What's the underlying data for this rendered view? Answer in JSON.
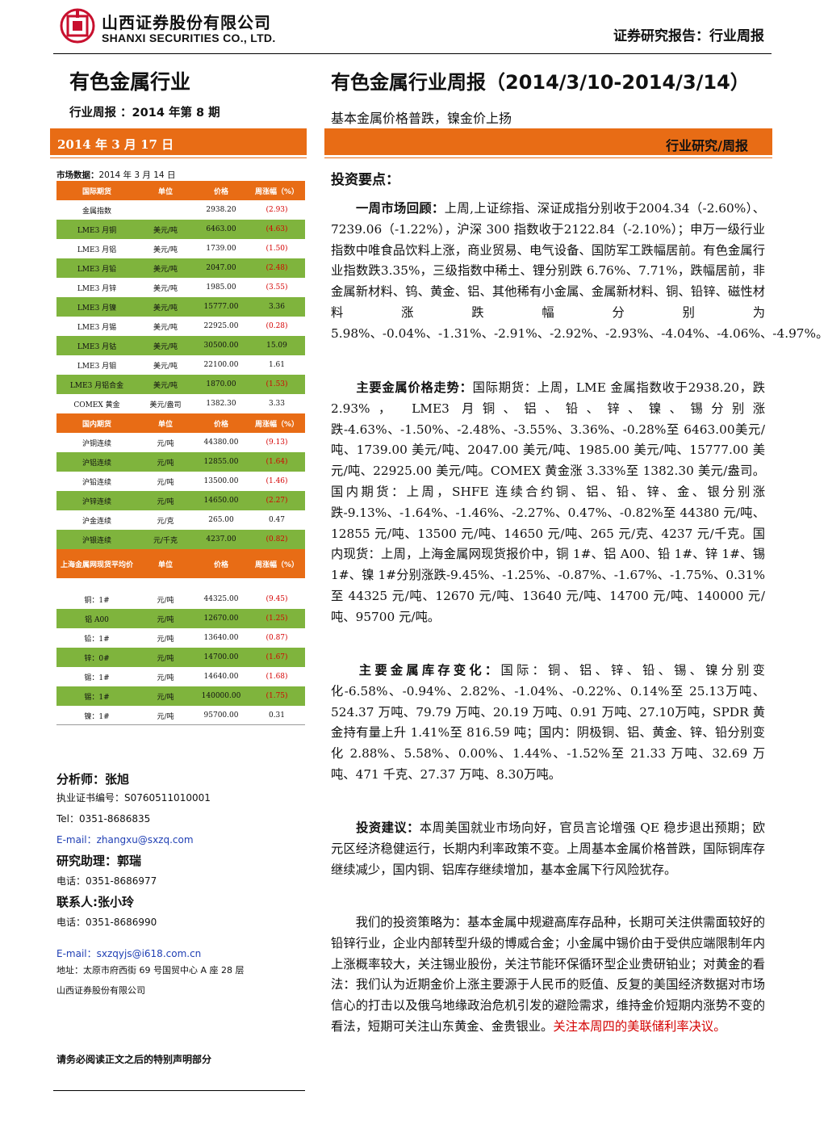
{
  "header": {
    "company_cn": "山西证券股份有限公司",
    "company_en": "SHANXI SECURITIES CO., LTD.",
    "report_type": "证券研究报告：行业周报",
    "brand_color": "#C8102E"
  },
  "left": {
    "industry": "有色金属行业",
    "issue": "行业周报  ：2014 年第 8 期",
    "date": "2014 年 3 月 17 日",
    "market_caption_label": "市场数据：",
    "market_caption_date": "2014 年 3 月 14 日",
    "tables": {
      "intl": {
        "headers": [
          "国际期货",
          "单位",
          "价格",
          "周涨幅（%）"
        ],
        "rows": [
          [
            "金属指数",
            "",
            "2938.20",
            "(2.93)"
          ],
          [
            "LME3 月铜",
            "美元/吨",
            "6463.00",
            "(4.63)"
          ],
          [
            "LME3 月铝",
            "美元/吨",
            "1739.00",
            "(1.50)"
          ],
          [
            "LME3 月铅",
            "美元/吨",
            "2047.00",
            "(2.48)"
          ],
          [
            "LME3 月锌",
            "美元/吨",
            "1985.00",
            "(3.55)"
          ],
          [
            "LME3 月镍",
            "美元/吨",
            "15777.00",
            "3.36"
          ],
          [
            "LME3 月锡",
            "美元/吨",
            "22925.00",
            "(0.28)"
          ],
          [
            "LME3 月钴",
            "美元/吨",
            "30500.00",
            "15.09"
          ],
          [
            "LME3 月钼",
            "美元/吨",
            "22100.00",
            "1.61"
          ],
          [
            "LME3 月铝合金",
            "美元/吨",
            "1870.00",
            "(1.53)"
          ],
          [
            "COMEX 黄金",
            "美元/盎司",
            "1382.30",
            "3.33"
          ]
        ]
      },
      "domestic": {
        "headers": [
          "国内期货",
          "单位",
          "价格",
          "周涨幅（%）"
        ],
        "rows": [
          [
            "沪铜连续",
            "元/吨",
            "44380.00",
            "(9.13)"
          ],
          [
            "沪铝连续",
            "元/吨",
            "12855.00",
            "(1.64)"
          ],
          [
            "沪铅连续",
            "元/吨",
            "13500.00",
            "(1.46)"
          ],
          [
            "沪锌连续",
            "元/吨",
            "14650.00",
            "(2.27)"
          ],
          [
            "沪金连续",
            "元/克",
            "265.00",
            "0.47"
          ],
          [
            "沪银连续",
            "元/千克",
            "4237.00",
            "(0.82)"
          ]
        ]
      },
      "spot": {
        "headers": [
          "上海金属网现货平均价",
          "单位",
          "价格",
          "周涨幅（%）"
        ],
        "rows": [
          [
            "铜：1#",
            "元/吨",
            "44325.00",
            "(9.45)"
          ],
          [
            "铝 A00",
            "元/吨",
            "12670.00",
            "(1.25)"
          ],
          [
            "铅：1#",
            "元/吨",
            "13640.00",
            "(0.87)"
          ],
          [
            "锌：0#",
            "元/吨",
            "14700.00",
            "(1.67)"
          ],
          [
            "锡：1#",
            "元/吨",
            "14640.00",
            "(1.68)"
          ],
          [
            "锡：1#",
            "元/吨",
            "140000.00",
            "(1.75)"
          ],
          [
            "镍：1#",
            "元/吨",
            "95700.00",
            "0.31"
          ]
        ]
      }
    },
    "analyst": "分析师：张旭",
    "cert": "执业证书编号：S0760511010001",
    "tel1": "Tel：0351-8686835",
    "email1": "E-mail：zhangxu@sxzq.com",
    "assistant": "研究助理：郭瑞",
    "tel2": "电话：0351-8686977",
    "contact": "联系人:张小玲",
    "tel3": "电话：0351-8686990",
    "email2": "E-mail：sxzqyjs@i618.com.cn",
    "address": "地址：太原市府西街 69 号国贸中心 A 座 28 层",
    "company_foot": "山西证券股份有限公司",
    "disclaimer": "请务必阅读正文之后的特别声明部分"
  },
  "right": {
    "title": "有色金属行业周报（2014/3/10-2014/3/14）",
    "subtitle": "基本金属价格普跌，镍金价上扬",
    "category": "行业研究/周报",
    "points_heading": "投资要点：",
    "p1_label": "一周市场回顾：",
    "p1_text": "上周,上证综指、深证成指分别收于2004.34（-2.60%）、7239.06（-1.22%），沪深 300 指数收于2122.84（-2.10%）；申万一级行业指数中唯食品饮料上涨，商业贸易、电气设备、国防军工跌幅居前。有色金属行业指数跌3.35%，三级指数中稀土、锂分别跌 6.76%、7.71%，跌幅居前，非金属新材料、钨、黄金、铝、其他稀有小金属、金属新材料、铜、铅锌、磁性材料涨跌幅分别为 5.98%、-0.04%、-1.31%、-2.91%、-2.92%、-2.93%、-4.04%、-4.06%、-4.97%。",
    "p2_label": "主要金属价格走势：",
    "p2_text": "国际期货：上周，LME 金属指数收于2938.20，跌 2.93%， LME3 月铜、铝、铅、锌、镍、锡分别涨跌-4.63%、-1.50%、-2.48%、-3.55%、3.36%、-0.28%至 6463.00美元/吨、1739.00 美元/吨、2047.00 美元/吨、1985.00 美元/吨、15777.00 美元/吨、22925.00 美元/吨。COMEX 黄金涨 3.33%至 1382.30 美元/盎司。国内期货：上周，SHFE 连续合约铜、铝、铅、锌、金、银分别涨跌-9.13%、-1.64%、-1.46%、-2.27%、0.47%、-0.82%至 44380 元/吨、12855 元/吨、13500 元/吨、14650 元/吨、265 元/克、4237 元/千克。国内现货：上周，上海金属网现货报价中，铜 1#、铝 A00、铅 1#、锌 1#、锡 1#、镍 1#分别涨跌-9.45%、-1.25%、-0.87%、-1.67%、-1.75%、0.31%至 44325 元/吨、12670 元/吨、13640 元/吨、14700 元/吨、140000 元/吨、95700 元/吨。",
    "p3_label": "主要金属库存变化：",
    "p3_text": "国际：铜、铝、锌、铅、锡、镍分别变化-6.58%、-0.94%、2.82%、-1.04%、-0.22%、0.14%至 25.13万吨、524.37 万吨、79.79 万吨、20.19 万吨、0.91 万吨、27.10万吨，SPDR 黄金持有量上升 1.41%至 816.59 吨；国内：阴极铜、铝、黄金、锌、铅分别变化 2.88%、5.58%、0.00%、1.44%、-1.52%至 21.33 万吨、32.69 万吨、471 千克、27.37 万吨、8.30万吨。",
    "p4_label": "投资建议：",
    "p4_text": "本周美国就业市场向好，官员言论增强 QE 稳步退出预期；欧元区经济稳健运行，长期内利率政策不变。上周基本金属价格普跌，国际铜库存继续减少，国内铜、铝库存继续增加，基本金属下行风险犹存。",
    "p5_text": "我们的投资策略为：基本金属中规避高库存品种，长期可关注供需面较好的铅锌行业，企业内部转型升级的博威合金；小金属中锡价由于受供应端限制年内上涨概率较大，关注锡业股份，关注节能环保循环型企业贵研铂业；对黄金的看法：我们认为近期金价上涨主要源于人民币的贬值、反复的美国经济数据对市场信心的打击以及俄乌地缘政治危机引发的避险需求，维持金价短期内涨势不变的看法，短期可关注山东黄金、金贵银业。",
    "p5_red": "关注本周四的美联储利率决议。"
  }
}
